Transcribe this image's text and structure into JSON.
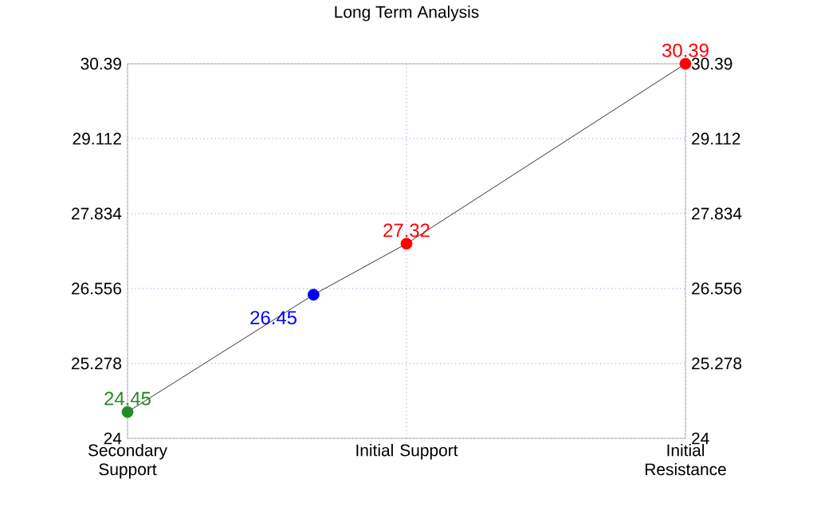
{
  "chart_data": {
    "type": "line",
    "title": "Long Term Analysis",
    "categories": [
      "Secondary Support",
      null,
      null,
      "Initial Support",
      null,
      null,
      "Initial Resistance"
    ],
    "ylim": [
      24,
      30.39
    ],
    "yticks": [
      24,
      25.278,
      26.556,
      27.834,
      29.112,
      30.39
    ],
    "y2lim": [
      24,
      30.39
    ],
    "y2ticks": [
      24,
      25.278,
      26.556,
      27.834,
      29.112,
      30.39
    ],
    "grid": true,
    "marker": "circle",
    "data_labels": true,
    "series": [
      {
        "color": "#000000",
        "values": [
          24.45,
          null,
          26.45,
          27.32,
          null,
          null,
          30.39
        ],
        "colors": [
          "#228b22",
          null,
          "#0000ff",
          "#ff0000",
          null,
          null,
          "#ff0000"
        ]
      }
    ]
  }
}
